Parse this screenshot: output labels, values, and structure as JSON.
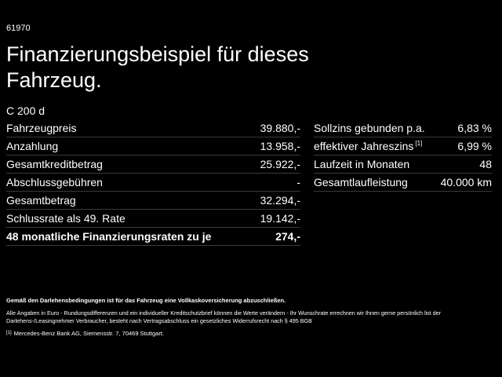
{
  "code": "61970",
  "title": "Finanzierungsbeispiel für dieses Fahrzeug.",
  "model": "C 200 d",
  "left_table": {
    "rows": [
      {
        "label": "Fahrzeugpreis",
        "value": "39.880,-"
      },
      {
        "label": "Anzahlung",
        "value": "13.958,-"
      },
      {
        "label": "Gesamtkreditbetrag",
        "value": "25.922,-"
      },
      {
        "label": "Abschlussgebühren",
        "value": "-"
      },
      {
        "label": "Gesamtbetrag",
        "value": "32.294,-"
      },
      {
        "label": "Schlussrate als 49. Rate",
        "value": "19.142,-"
      },
      {
        "label": "48 monatliche Finanzierungsraten zu je",
        "value": "274,-"
      }
    ]
  },
  "right_table": {
    "rows": [
      {
        "label": "Sollzins gebunden p.a.",
        "value": "6,83 %"
      },
      {
        "label": "effektiver Jahreszins",
        "note": "[1]",
        "value": "6,99 %"
      },
      {
        "label": "Laufzeit in Monaten",
        "value": "48"
      },
      {
        "label": "Gesamtlaufleistung",
        "value": "40.000 km"
      }
    ]
  },
  "disclaimer": "Gemäß den Darlehensbedingungen ist für das Fahrzeug eine Vollkaskoversicherung abzuschließen.",
  "notes": "Alle Angaben in Euro - Rundungsdifferenzen und ein individueller Kreditschutzbrief können die Werte verändern - Ihr Wunschrate errechnen wir Ihnen gerne persönlich list der Darlehens-/Leasingnehmer Verbraucher, besteht nach Vertragsabschluss ein gesetzliches Widerrufsrecht nach § 495 BGB",
  "footnote": {
    "marker": "[1]",
    "text": "Mercedes-Benz Bank AG, Siemensstr. 7, 70469 Stuttgart."
  }
}
